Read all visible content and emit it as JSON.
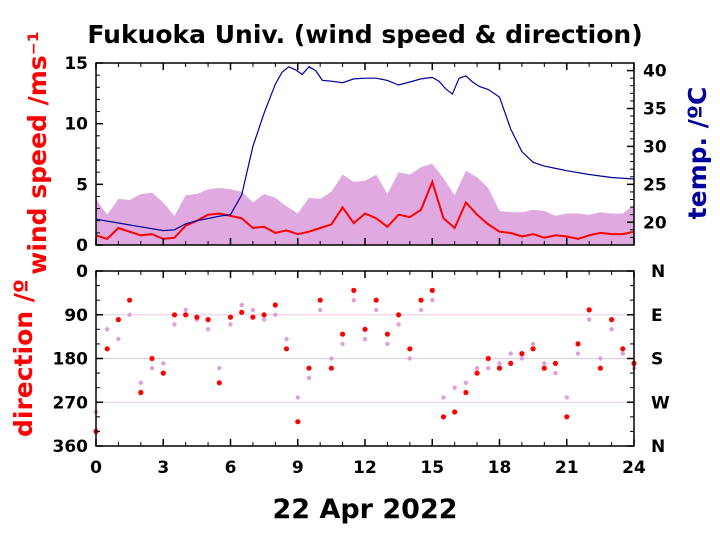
{
  "chart_data": [
    {
      "type": "line",
      "title": "Fukuoka Univ. (wind speed & direction)",
      "xlabel": "22 Apr 2022",
      "x_ticks": [
        "0",
        "3",
        "6",
        "9",
        "12",
        "15",
        "18",
        "21",
        "24"
      ],
      "xlim": [
        0,
        24
      ],
      "ylabel": "wind speed /ms⁻¹",
      "ylim": [
        0,
        15
      ],
      "y_ticks": [
        "0",
        "5",
        "10",
        "15"
      ],
      "y2label": "temp. /ºC",
      "y2lim": [
        17,
        41
      ],
      "y2_ticks": [
        "20",
        "25",
        "30",
        "35",
        "40"
      ],
      "series": [
        {
          "role": "wind speed (mean)",
          "axis": "left",
          "color": "#ff0000",
          "x": [
            0,
            0.5,
            1,
            1.5,
            2,
            2.5,
            3,
            3.5,
            4,
            4.5,
            5,
            5.5,
            6,
            6.5,
            7,
            7.5,
            8,
            8.5,
            9,
            9.5,
            10,
            10.5,
            11,
            11.5,
            12,
            12.5,
            13,
            13.5,
            14,
            14.5,
            15,
            15.5,
            16,
            16.5,
            17,
            17.5,
            18,
            18.5,
            19,
            19.5,
            20,
            20.5,
            21,
            21.5,
            22,
            22.5,
            23,
            23.5,
            24
          ],
          "values": [
            0.8,
            0.5,
            1.4,
            1.1,
            0.8,
            0.9,
            0.5,
            0.6,
            1.6,
            2,
            2.5,
            2.6,
            2.4,
            2.2,
            1.4,
            1.5,
            1,
            1.2,
            0.9,
            1.1,
            1.4,
            1.7,
            3.1,
            1.8,
            2.6,
            2.2,
            1.5,
            2.5,
            2.3,
            2.9,
            5.2,
            2.2,
            1.4,
            3.5,
            2.5,
            1.7,
            1.1,
            1,
            0.7,
            0.9,
            0.6,
            0.8,
            0.7,
            0.5,
            0.8,
            1,
            0.9,
            0.9,
            1.1
          ]
        },
        {
          "role": "wind speed (gust)",
          "axis": "left",
          "color": "#dda0dd",
          "x": [
            0,
            0.5,
            1,
            1.5,
            2,
            2.5,
            3,
            3.5,
            4,
            4.5,
            5,
            5.5,
            6,
            6.5,
            7,
            7.5,
            8,
            8.5,
            9,
            9.5,
            10,
            10.5,
            11,
            11.5,
            12,
            12.5,
            13,
            13.5,
            14,
            14.5,
            15,
            15.5,
            16,
            16.5,
            17,
            17.5,
            18,
            18.5,
            19,
            19.5,
            20,
            20.5,
            21,
            21.5,
            22,
            22.5,
            23,
            23.5,
            24
          ],
          "values": [
            3.8,
            2.5,
            3.8,
            3.7,
            4.2,
            4.3,
            3.5,
            2.4,
            4.1,
            4.2,
            4.6,
            4.7,
            4.6,
            4.4,
            3.5,
            4.2,
            3.9,
            3.2,
            2.6,
            3.9,
            3.8,
            4.4,
            5.8,
            5.2,
            5.3,
            5.8,
            4.2,
            6,
            5.8,
            6.4,
            6.7,
            5.5,
            4.1,
            6.1,
            5.6,
            4.7,
            2.8,
            2.7,
            2.7,
            2.9,
            2.8,
            2.4,
            2.6,
            2.6,
            2.5,
            2.7,
            2.6,
            2.6,
            3.3
          ]
        },
        {
          "role": "temperature",
          "axis": "right",
          "color": "#00009a",
          "x": [
            0,
            1,
            2,
            3,
            3.5,
            4,
            4.5,
            5,
            5.5,
            6,
            6.5,
            7,
            7.5,
            8,
            8.3,
            8.6,
            8.9,
            9.2,
            9.5,
            9.8,
            10.1,
            10.5,
            11,
            11.5,
            12,
            12.5,
            13,
            13.5,
            14,
            14.5,
            15,
            15.3,
            15.6,
            15.9,
            16.2,
            16.5,
            16.8,
            17.1,
            17.5,
            18,
            18.5,
            19,
            19.5,
            20,
            20.5,
            21,
            22,
            23,
            24
          ],
          "values": [
            20.4,
            19.9,
            19.4,
            18.9,
            19,
            19.8,
            20.2,
            20.5,
            20.8,
            21,
            23.6,
            30,
            34.4,
            38.2,
            39.8,
            40.5,
            40.1,
            39.5,
            40.5,
            40,
            38.7,
            38.6,
            38.4,
            38.9,
            39,
            39,
            38.7,
            38.1,
            38.5,
            38.9,
            39.1,
            38.6,
            37.6,
            36.9,
            39,
            39.3,
            38.5,
            37.9,
            37.5,
            36.5,
            32.3,
            29.3,
            27.9,
            27.4,
            27.1,
            26.8,
            26.3,
            25.9,
            25.7
          ]
        }
      ]
    },
    {
      "type": "scatter",
      "ylabel": "direction /º",
      "ylim": [
        0,
        360
      ],
      "y_inverted": true,
      "y_ticks": [
        "0",
        "90",
        "180",
        "270",
        "360"
      ],
      "y2_ticks": [
        "N",
        "E",
        "S",
        "W",
        "N"
      ],
      "xlim": [
        0,
        24
      ],
      "series": [
        {
          "role": "direction (mean)",
          "color": "#ff0000",
          "x": [
            0,
            0.5,
            1,
            1.5,
            2,
            2.5,
            3,
            3.5,
            4,
            4.5,
            5,
            5.5,
            6,
            6.5,
            7,
            7.5,
            8,
            8.5,
            9,
            9.5,
            10,
            10.5,
            11,
            11.5,
            12,
            12.5,
            13,
            13.5,
            14,
            14.5,
            15,
            15.5,
            16,
            16.5,
            17,
            17.5,
            18,
            18.5,
            19,
            19.5,
            20,
            20.5,
            21,
            21.5,
            22,
            22.5,
            23,
            23.5,
            24
          ],
          "values": [
            330,
            160,
            100,
            60,
            250,
            180,
            210,
            90,
            90,
            95,
            100,
            230,
            95,
            85,
            95,
            90,
            70,
            160,
            310,
            200,
            60,
            200,
            130,
            40,
            120,
            60,
            130,
            90,
            160,
            60,
            40,
            300,
            290,
            250,
            210,
            180,
            200,
            190,
            170,
            160,
            200,
            190,
            300,
            150,
            80,
            200,
            100,
            160,
            190
          ]
        },
        {
          "role": "direction (instantaneous)",
          "color": "#dda0dd",
          "x": [
            0,
            0.5,
            1,
            1.5,
            2,
            2.5,
            3,
            3.5,
            4,
            4.5,
            5,
            5.5,
            6,
            6.5,
            7,
            7.5,
            8,
            8.5,
            9,
            9.5,
            10,
            10.5,
            11,
            11.5,
            12,
            12.5,
            13,
            13.5,
            14,
            14.5,
            15,
            15.5,
            16,
            16.5,
            17,
            17.5,
            18,
            18.5,
            19,
            19.5,
            20,
            20.5,
            21,
            21.5,
            22,
            22.5,
            23,
            23.5,
            24
          ],
          "values": [
            290,
            120,
            140,
            90,
            230,
            200,
            190,
            110,
            80,
            100,
            120,
            200,
            110,
            70,
            80,
            100,
            90,
            140,
            260,
            220,
            80,
            180,
            150,
            60,
            140,
            80,
            150,
            110,
            180,
            80,
            60,
            260,
            240,
            230,
            200,
            200,
            190,
            170,
            180,
            150,
            190,
            210,
            260,
            170,
            100,
            180,
            120,
            170,
            200
          ]
        }
      ]
    }
  ]
}
